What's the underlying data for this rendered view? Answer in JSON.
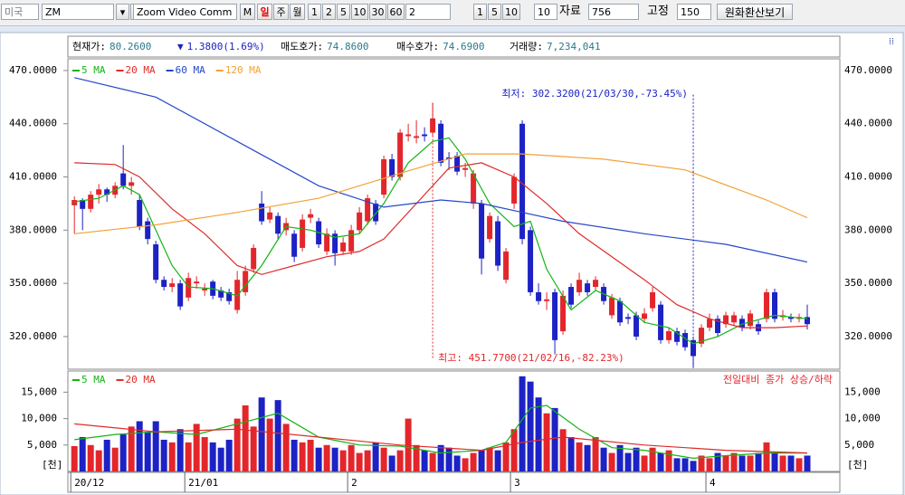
{
  "toolbar": {
    "market": "미국",
    "symbol": "ZM",
    "name": "Zoom Video Comm",
    "m": "M",
    "periods": [
      "일",
      "주",
      "월"
    ],
    "minutes": [
      "1",
      "2",
      "5",
      "10",
      "30",
      "60"
    ],
    "minute_input": "2",
    "counts": [
      "1",
      "5",
      "10"
    ],
    "count_input": "10",
    "data_label": "자료",
    "data_count": "756",
    "fixed_label": "고정",
    "fixed_count": "150",
    "convert": "원화환산보기"
  },
  "info": [
    {
      "label": "현재가:",
      "value": "80.2600"
    },
    {
      "label": "▼",
      "value": "1.3800(1.69%)"
    },
    {
      "label": "매도호가:",
      "value": "74.8600"
    },
    {
      "label": "매수호가:",
      "value": "74.6900"
    },
    {
      "label": "거래량:",
      "value": "7,234,041"
    }
  ],
  "chart_data": [
    {
      "type": "candlestick",
      "open": [
        394,
        397,
        392,
        400,
        403,
        400,
        412,
        405,
        397,
        385,
        372,
        352,
        348,
        350,
        342,
        350,
        346,
        351,
        346,
        345,
        335,
        345,
        358,
        395,
        386,
        388,
        380,
        378,
        370,
        387,
        385,
        368,
        378,
        368,
        368,
        380,
        385,
        395,
        400,
        420,
        410,
        433,
        432,
        434,
        435,
        440,
        421,
        422,
        414,
        395,
        395,
        375,
        385,
        352,
        395,
        440,
        380,
        345,
        340,
        345,
        323,
        348,
        345,
        350,
        348,
        348,
        332,
        340,
        331,
        332,
        330,
        336,
        338,
        318,
        323,
        322,
        318,
        316,
        325,
        330,
        327,
        328,
        330,
        326,
        327,
        330,
        345,
        331,
        331,
        330,
        331
      ],
      "close": [
        397,
        392,
        400,
        403,
        400,
        405,
        405,
        407,
        382,
        375,
        352,
        348,
        350,
        337,
        353,
        351,
        347,
        343,
        342,
        340,
        352,
        357,
        370,
        385,
        390,
        378,
        384,
        365,
        386,
        389,
        372,
        378,
        367,
        373,
        380,
        390,
        398,
        385,
        420,
        410,
        435,
        434,
        433,
        433,
        443,
        418,
        420,
        413,
        415,
        412,
        364,
        388,
        360,
        368,
        410,
        375,
        345,
        340,
        341,
        318,
        343,
        338,
        352,
        345,
        352,
        340,
        342,
        328,
        330,
        320,
        333,
        345,
        318,
        323,
        317,
        314,
        309,
        325,
        330,
        322,
        332,
        332,
        325,
        333,
        323,
        345,
        330,
        332,
        330,
        331,
        327
      ],
      "high": [
        399,
        398,
        402,
        406,
        404,
        407,
        428,
        410,
        400,
        387,
        374,
        354,
        353,
        352,
        356,
        354,
        350,
        352,
        348,
        347,
        357,
        360,
        372,
        402,
        393,
        390,
        387,
        380,
        389,
        392,
        387,
        381,
        380,
        376,
        383,
        393,
        400,
        397,
        422,
        423,
        437,
        440,
        442,
        438,
        451.77,
        442,
        424,
        424,
        418,
        414,
        397,
        390,
        388,
        370,
        412,
        442,
        382,
        350,
        345,
        347,
        346,
        350,
        356,
        352,
        354,
        350,
        344,
        342,
        333,
        334,
        336,
        348,
        340,
        325,
        325,
        324,
        320,
        327,
        333,
        332,
        334,
        334,
        332,
        335,
        329,
        347,
        347,
        335,
        333,
        333,
        338
      ],
      "low": [
        378,
        380,
        390,
        395,
        396,
        398,
        403,
        400,
        380,
        372,
        350,
        346,
        345,
        335,
        340,
        347,
        343,
        341,
        340,
        338,
        333,
        343,
        356,
        383,
        384,
        375,
        377,
        362,
        368,
        384,
        370,
        366,
        360,
        366,
        366,
        378,
        383,
        383,
        398,
        408,
        408,
        430,
        429,
        430,
        433,
        416,
        414,
        411,
        410,
        392,
        355,
        373,
        357,
        350,
        392,
        372,
        343,
        338,
        335,
        310,
        321,
        336,
        343,
        343,
        346,
        338,
        330,
        326,
        327,
        318,
        328,
        334,
        316,
        316,
        315,
        312,
        302.32,
        314,
        323,
        320,
        325,
        326,
        323,
        324,
        321,
        328,
        328,
        329,
        328,
        328,
        324
      ],
      "up_color": "#e3262b",
      "down_color": "#1c22c4",
      "xlim": [
        -0.8,
        94
      ],
      "ylim": [
        301.6,
        476.6
      ],
      "yticks": [
        {
          "value": 320,
          "label": "320.0000"
        },
        {
          "value": 350,
          "label": "350.0000"
        },
        {
          "value": 380,
          "label": "380.0000"
        },
        {
          "value": 410,
          "label": "410.0000"
        },
        {
          "value": 440,
          "label": "440.0000"
        },
        {
          "value": 470,
          "label": "470.0000"
        }
      ],
      "xticks": [
        {
          "value": 0,
          "label": "20/12"
        },
        {
          "value": 14,
          "label": "21/01"
        },
        {
          "value": 34,
          "label": "2"
        },
        {
          "value": 54,
          "label": "3"
        },
        {
          "value": 78,
          "label": "4"
        }
      ],
      "series": [
        {
          "name": "5 MA",
          "color": "#14b414",
          "x": [
            0,
            3,
            6,
            8,
            10,
            12,
            14,
            17,
            20,
            23,
            26,
            29,
            32,
            35,
            38,
            41,
            44,
            46,
            48,
            51,
            54,
            56,
            58,
            61,
            64,
            67,
            70,
            73,
            76,
            79,
            82,
            86,
            90
          ],
          "values": [
            396,
            398,
            405,
            400,
            380,
            360,
            348,
            347,
            343,
            360,
            382,
            380,
            376,
            378,
            395,
            418,
            430,
            432,
            420,
            395,
            382,
            385,
            358,
            335,
            346,
            340,
            328,
            325,
            316,
            320,
            327,
            332,
            330
          ]
        },
        {
          "name": "20 MA",
          "color": "#e02a2a",
          "x": [
            0,
            5,
            8,
            12,
            16,
            20,
            23,
            27,
            31,
            35,
            38,
            42,
            46,
            50,
            54,
            58,
            62,
            66,
            70,
            74,
            78,
            82,
            86,
            90
          ],
          "values": [
            418,
            417,
            410,
            392,
            378,
            360,
            355,
            360,
            365,
            368,
            375,
            395,
            415,
            418,
            410,
            395,
            378,
            365,
            352,
            338,
            330,
            325,
            325,
            326
          ]
        },
        {
          "name": "60 MA",
          "color": "#2448c8",
          "x": [
            0,
            10,
            20,
            30,
            38,
            45,
            50,
            55,
            60,
            70,
            80,
            90
          ],
          "values": [
            466,
            455,
            430,
            405,
            393,
            397,
            395,
            390,
            385,
            378,
            372,
            362
          ]
        },
        {
          "name": "120 MA",
          "color": "#f2a23a",
          "x": [
            0,
            10,
            20,
            30,
            40,
            48,
            55,
            65,
            75,
            85,
            90
          ],
          "values": [
            378,
            383,
            390,
            398,
            412,
            423,
            423,
            420,
            414,
            397,
            387
          ]
        }
      ],
      "annotations": [
        {
          "text": "최고: 451.7700(21/02/16,-82.23%)",
          "x": 44,
          "y": 451.77
        },
        {
          "text": "최저: 302.3200(21/03/30,-73.45%)",
          "x": 76,
          "y": 302.32
        }
      ]
    },
    {
      "type": "bar",
      "values": [
        4800,
        6500,
        5000,
        4000,
        6000,
        4500,
        7000,
        8500,
        9500,
        7500,
        9500,
        6000,
        5500,
        8000,
        5500,
        9000,
        6500,
        5500,
        4500,
        6000,
        10000,
        12500,
        8500,
        14000,
        10000,
        13500,
        9000,
        6000,
        5500,
        6000,
        4500,
        5000,
        4500,
        4000,
        5000,
        3500,
        4000,
        5500,
        4500,
        3000,
        4000,
        10000,
        5000,
        4000,
        3500,
        5000,
        4500,
        3000,
        2500,
        3500,
        4000,
        4500,
        4000,
        5500,
        8000,
        18000,
        17000,
        14000,
        11000,
        12000,
        8000,
        6500,
        5500,
        5000,
        6500,
        4500,
        3500,
        5000,
        3500,
        4500,
        3000,
        4500,
        3500,
        4000,
        2500,
        2500,
        2000,
        3000,
        2500,
        3500,
        3000,
        3500,
        3000,
        3000,
        3500,
        5500,
        3500,
        3000,
        3000,
        2500,
        3000
      ],
      "ylim": [
        0,
        19000
      ],
      "yticks": [
        {
          "value": 5000,
          "label": "5,000"
        },
        {
          "value": 10000,
          "label": "10,000"
        },
        {
          "value": 15000,
          "label": "15,000"
        }
      ],
      "unit_label": "[천]",
      "note": "전일대비 종가 상승/하락",
      "series": [
        {
          "name": "5 MA",
          "color": "#14b414",
          "x": [
            0,
            5,
            10,
            15,
            20,
            25,
            30,
            35,
            40,
            45,
            50,
            53,
            56,
            58,
            62,
            66,
            70,
            76,
            80,
            85,
            90
          ],
          "values": [
            6000,
            7000,
            7500,
            7000,
            9000,
            11000,
            6500,
            5000,
            4800,
            3500,
            4000,
            5500,
            12000,
            12500,
            8000,
            4500,
            4000,
            2500,
            3000,
            3500,
            3500
          ]
        },
        {
          "name": "20 MA",
          "color": "#e02a2a",
          "x": [
            0,
            10,
            20,
            30,
            40,
            50,
            55,
            60,
            70,
            80,
            90
          ],
          "values": [
            9000,
            7500,
            8000,
            6500,
            5000,
            4000,
            5500,
            6500,
            5000,
            4000,
            3500
          ]
        }
      ]
    }
  ]
}
